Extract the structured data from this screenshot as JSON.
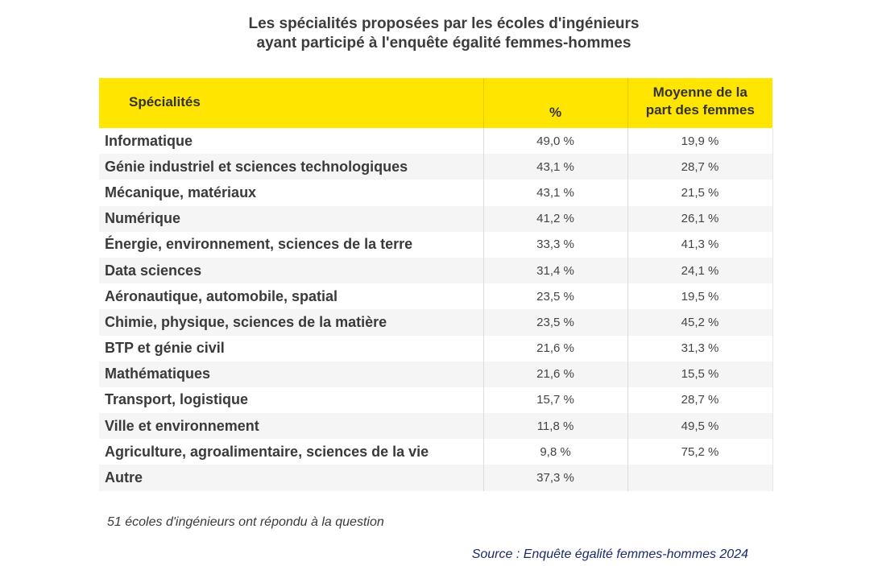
{
  "title": {
    "line1": "Les spécialités proposées par les écoles d'ingénieurs",
    "line2": "ayant participé à l'enquête égalité femmes-hommes"
  },
  "table": {
    "headers": {
      "specialites": "Spécialités",
      "pct": "%",
      "moyenne_line1": "Moyenne de la",
      "moyenne_line2": "part des femmes"
    },
    "rows": [
      {
        "name": "Informatique",
        "pct": "49,0 %",
        "moyenne": "19,9 %"
      },
      {
        "name": "Génie industriel et sciences technologiques",
        "pct": "43,1 %",
        "moyenne": "28,7 %"
      },
      {
        "name": "Mécanique, matériaux",
        "pct": "43,1 %",
        "moyenne": "21,5 %"
      },
      {
        "name": "Numérique",
        "pct": "41,2 %",
        "moyenne": "26,1 %"
      },
      {
        "name": "Énergie, environnement, sciences de la terre",
        "pct": "33,3 %",
        "moyenne": "41,3 %"
      },
      {
        "name": "Data sciences",
        "pct": "31,4 %",
        "moyenne": "24,1 %"
      },
      {
        "name": "Aéronautique, automobile, spatial",
        "pct": "23,5 %",
        "moyenne": "19,5 %"
      },
      {
        "name": "Chimie, physique, sciences de la matière",
        "pct": "23,5 %",
        "moyenne": "45,2 %"
      },
      {
        "name": "BTP et génie civil",
        "pct": "21,6 %",
        "moyenne": "31,3 %"
      },
      {
        "name": "Mathématiques",
        "pct": "21,6 %",
        "moyenne": "15,5 %"
      },
      {
        "name": "Transport, logistique",
        "pct": "15,7 %",
        "moyenne": "28,7 %"
      },
      {
        "name": "Ville et environnement",
        "pct": "11,8 %",
        "moyenne": "49,5 %"
      },
      {
        "name": "Agriculture, agroalimentaire, sciences de la vie",
        "pct": "9,8 %",
        "moyenne": "75,2 %"
      },
      {
        "name": "Autre",
        "pct": "37,3 %",
        "moyenne": ""
      }
    ]
  },
  "note": "51 écoles d'ingénieurs ont répondu à la question",
  "source": "Source : Enquête égalité femmes-hommes 2024",
  "colors": {
    "header_bg": "#ffe500",
    "row_alt_bg": "#f5f5f5",
    "source_text": "#1a2a6c"
  }
}
